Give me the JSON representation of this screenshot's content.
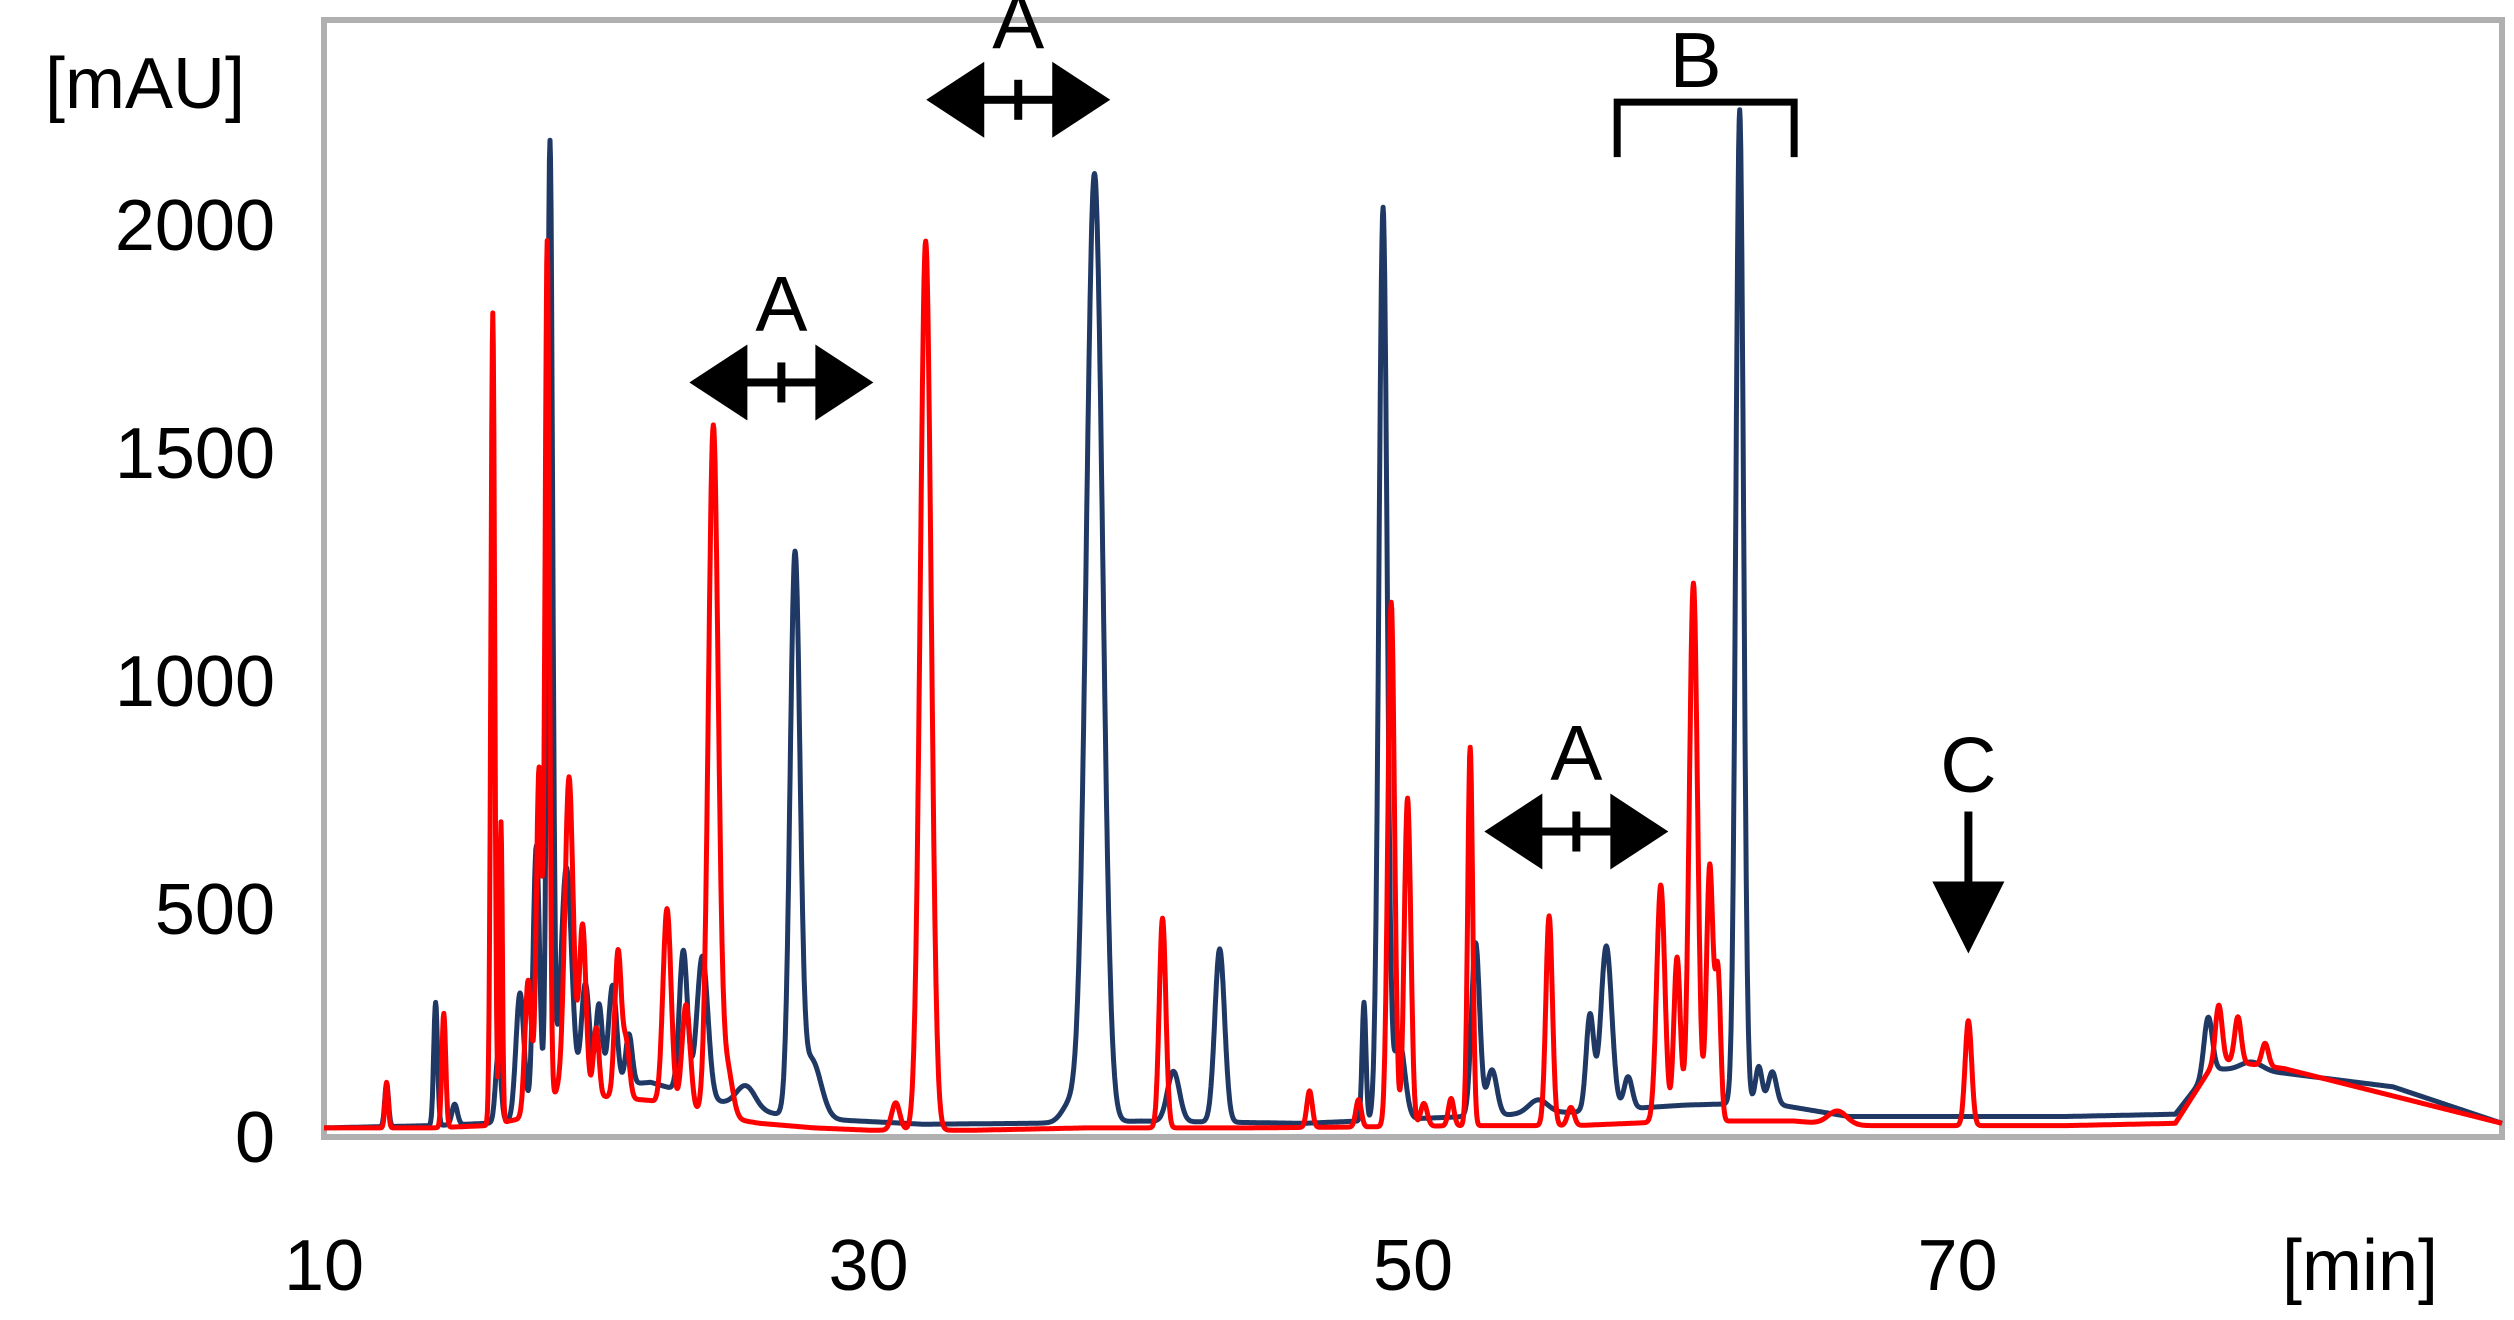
{
  "chart_data": {
    "type": "line",
    "title": "",
    "xlabel": "[min]",
    "ylabel": "[mAU]",
    "xlim": [
      10,
      90
    ],
    "ylim": [
      0,
      2450
    ],
    "x_ticks": [
      10,
      30,
      50,
      70
    ],
    "x_tick_labels": [
      "10",
      "30",
      "50",
      "70"
    ],
    "y_ticks": [
      0,
      500,
      1000,
      1500,
      2000
    ],
    "y_tick_labels": [
      "0",
      "500",
      "1000",
      "1500",
      "2000"
    ],
    "grid": false,
    "series": [
      {
        "name": "blue",
        "color": "#1f3864",
        "baseline": [
          [
            10,
            20
          ],
          [
            14,
            25
          ],
          [
            16,
            30
          ],
          [
            18,
            40
          ],
          [
            20,
            110
          ],
          [
            22,
            120
          ],
          [
            24,
            85
          ],
          [
            26,
            55
          ],
          [
            28,
            40
          ],
          [
            32,
            28
          ],
          [
            36,
            30
          ],
          [
            40,
            35
          ],
          [
            46,
            30
          ],
          [
            48,
            35
          ],
          [
            52,
            45
          ],
          [
            56,
            55
          ],
          [
            60,
            70
          ],
          [
            63,
            75
          ],
          [
            66,
            45
          ],
          [
            70,
            45
          ],
          [
            74,
            45
          ],
          [
            78,
            50
          ],
          [
            79.3,
            150
          ],
          [
            82,
            140
          ],
          [
            86,
            110
          ],
          [
            90,
            30
          ]
        ],
        "peaks": [
          [
            12.3,
            95,
            0.07
          ],
          [
            14.1,
            270,
            0.07
          ],
          [
            14.8,
            45,
            0.1
          ],
          [
            16.4,
            150,
            0.1
          ],
          [
            17.2,
            280,
            0.15
          ],
          [
            17.8,
            600,
            0.12
          ],
          [
            18.3,
            2130,
            0.1
          ],
          [
            18.9,
            520,
            0.2
          ],
          [
            19.6,
            240,
            0.15
          ],
          [
            20.1,
            180,
            0.12
          ],
          [
            20.6,
            220,
            0.15
          ],
          [
            21.2,
            110,
            0.12
          ],
          [
            23.2,
            310,
            0.15
          ],
          [
            23.9,
            310,
            0.2
          ],
          [
            25.5,
            50,
            0.35
          ],
          [
            27.3,
            1210,
            0.18
          ],
          [
            27.9,
            130,
            0.35
          ],
          [
            37.4,
            40,
            0.3
          ],
          [
            38.3,
            2080,
            0.3
          ],
          [
            41.2,
            110,
            0.22
          ],
          [
            42.9,
            380,
            0.18
          ],
          [
            48.2,
            260,
            0.07
          ],
          [
            48.9,
            2000,
            0.15
          ],
          [
            49.5,
            170,
            0.2
          ],
          [
            52.3,
            380,
            0.15
          ],
          [
            52.9,
            100,
            0.18
          ],
          [
            54.6,
            30,
            0.35
          ],
          [
            56.5,
            210,
            0.14
          ],
          [
            57.1,
            360,
            0.2
          ],
          [
            57.9,
            70,
            0.15
          ],
          [
            62.0,
            2180,
            0.14
          ],
          [
            62.7,
            80,
            0.12
          ],
          [
            63.2,
            70,
            0.15
          ],
          [
            79.2,
            120,
            0.15
          ],
          [
            80.8,
            20,
            0.4
          ]
        ]
      },
      {
        "name": "red",
        "color": "#ff0000",
        "baseline": [
          [
            10,
            20
          ],
          [
            14,
            20
          ],
          [
            16,
            25
          ],
          [
            18,
            50
          ],
          [
            19,
            140
          ],
          [
            20,
            90
          ],
          [
            22,
            80
          ],
          [
            24,
            50
          ],
          [
            26,
            30
          ],
          [
            28,
            20
          ],
          [
            30,
            15
          ],
          [
            34,
            15
          ],
          [
            38,
            20
          ],
          [
            40,
            20
          ],
          [
            44,
            20
          ],
          [
            48,
            22
          ],
          [
            52,
            25
          ],
          [
            56,
            25
          ],
          [
            60,
            35
          ],
          [
            64,
            35
          ],
          [
            66,
            25
          ],
          [
            70,
            25
          ],
          [
            74,
            25
          ],
          [
            78,
            30
          ],
          [
            79.5,
            170
          ],
          [
            82,
            150
          ],
          [
            86,
            90
          ],
          [
            90,
            30
          ]
        ],
        "peaks": [
          [
            12.3,
            100,
            0.06
          ],
          [
            14.4,
            250,
            0.07
          ],
          [
            16.2,
            1780,
            0.07
          ],
          [
            16.5,
            660,
            0.05
          ],
          [
            17.5,
            300,
            0.12
          ],
          [
            17.9,
            760,
            0.1
          ],
          [
            18.2,
            1890,
            0.08
          ],
          [
            19.0,
            650,
            0.15
          ],
          [
            19.5,
            350,
            0.12
          ],
          [
            20.0,
            150,
            0.1
          ],
          [
            20.8,
            320,
            0.12
          ],
          [
            21.1,
            120,
            0.12
          ],
          [
            22.6,
            430,
            0.15
          ],
          [
            23.3,
            230,
            0.15
          ],
          [
            24.3,
            1510,
            0.18
          ],
          [
            24.8,
            110,
            0.2
          ],
          [
            31.0,
            60,
            0.15
          ],
          [
            32.1,
            1950,
            0.2
          ],
          [
            40.8,
            460,
            0.12
          ],
          [
            46.2,
            80,
            0.1
          ],
          [
            48.0,
            60,
            0.1
          ],
          [
            49.2,
            1150,
            0.12
          ],
          [
            49.8,
            720,
            0.12
          ],
          [
            50.4,
            50,
            0.12
          ],
          [
            51.4,
            60,
            0.1
          ],
          [
            52.1,
            830,
            0.09
          ],
          [
            55.0,
            460,
            0.12
          ],
          [
            55.8,
            40,
            0.12
          ],
          [
            59.1,
            520,
            0.15
          ],
          [
            59.7,
            360,
            0.12
          ],
          [
            60.3,
            1180,
            0.15
          ],
          [
            60.9,
            560,
            0.12
          ],
          [
            61.2,
            320,
            0.1
          ],
          [
            65.6,
            30,
            0.35
          ],
          [
            70.4,
            230,
            0.12
          ],
          [
            79.6,
            120,
            0.12
          ],
          [
            80.3,
            100,
            0.12
          ],
          [
            81.3,
            50,
            0.12
          ]
        ]
      }
    ],
    "annotations": [
      {
        "label": "A",
        "type": "double-arrow",
        "x": 26.8,
        "y_value": 1655
      },
      {
        "label": "A",
        "type": "double-arrow",
        "x": 35.5,
        "y_value": 2275
      },
      {
        "label": "A",
        "type": "double-arrow",
        "x": 56.0,
        "y_value": 670
      },
      {
        "label": "B",
        "type": "bracket",
        "x_start": 57.5,
        "x_end": 64.0,
        "y_value": 2270
      },
      {
        "label": "C",
        "type": "down-arrow",
        "x": 70.4,
        "y_value": 670
      }
    ]
  }
}
